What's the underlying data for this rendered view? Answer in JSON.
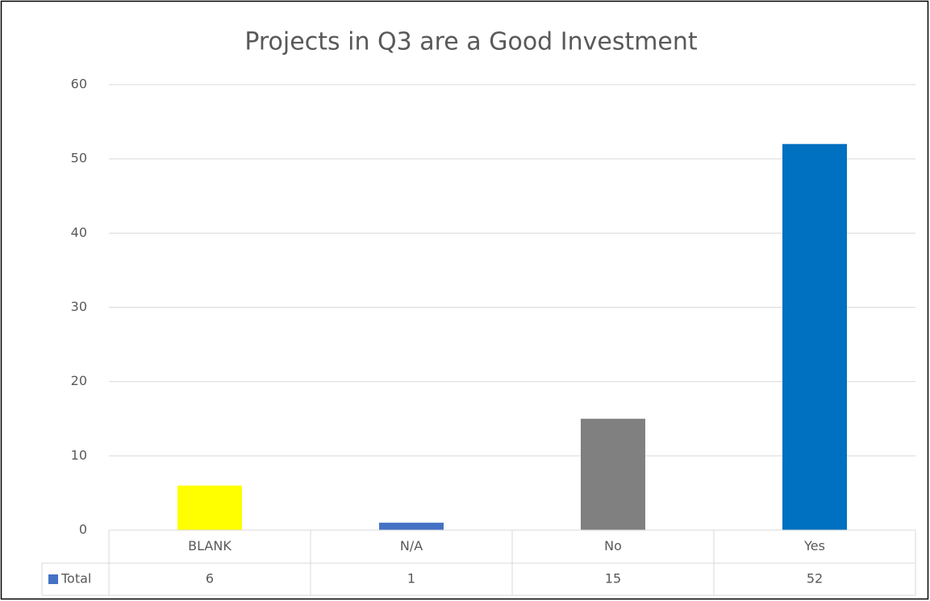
{
  "chart_data": {
    "type": "bar",
    "title": "Projects in Q3 are a Good Investment",
    "categories": [
      "BLANK",
      "N/A",
      "No",
      "Yes"
    ],
    "series": [
      {
        "name": "Total",
        "color": "#4472c4",
        "point_colors": [
          "#ffff00",
          "#4472c4",
          "#808080",
          "#0070c0"
        ],
        "values": [
          6,
          1,
          15,
          52
        ]
      }
    ],
    "ylim": [
      0,
      60
    ],
    "yticks": [
      0,
      10,
      20,
      30,
      40,
      50,
      60
    ],
    "grid": true,
    "data_table": true
  }
}
